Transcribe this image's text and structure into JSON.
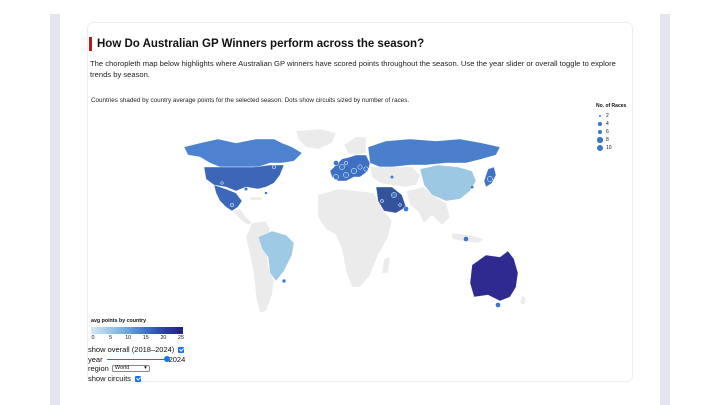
{
  "header": {
    "title": "How Do Australian GP Winners perform across the season?"
  },
  "description": "The choropleth map below highlights where Australian GP winners have scored points throughout the season. Use the year slider or overall toggle to explore trends by season.",
  "map": {
    "subtitle": "Countries shaded by country average points for the selected season. Dots show circuits sized by number of races.",
    "colors": {
      "no_data": "#ebebeb",
      "dot": "#3a78c9",
      "canada": "#4c82cf",
      "usa": "#3c67b7",
      "mexico": "#3d68b9",
      "brazil": "#9fcae6",
      "europe": "#3f6fc3",
      "russia": "#4a7fcc",
      "china": "#9dc8e4",
      "japan": "#3f72c4",
      "saudi": "#35529d",
      "australia": "#2e2a8f"
    },
    "size_legend": {
      "title": "No. of Races",
      "items": [
        {
          "label": "2",
          "r": 1.2
        },
        {
          "label": "4",
          "r": 1.7
        },
        {
          "label": "6",
          "r": 2.2
        },
        {
          "label": "8",
          "r": 2.7
        },
        {
          "label": "10",
          "r": 3.1
        }
      ]
    },
    "color_legend": {
      "title": "avg points by country",
      "ticks": [
        "0",
        "5",
        "10",
        "15",
        "20",
        "25"
      ]
    }
  },
  "controls": {
    "overall_label": "show overall (2018–2024)",
    "year_label": "year",
    "year_value": "2024",
    "year_fraction": 1.0,
    "region_label": "region",
    "region_value": "World",
    "circuits_label": "show circuits"
  }
}
